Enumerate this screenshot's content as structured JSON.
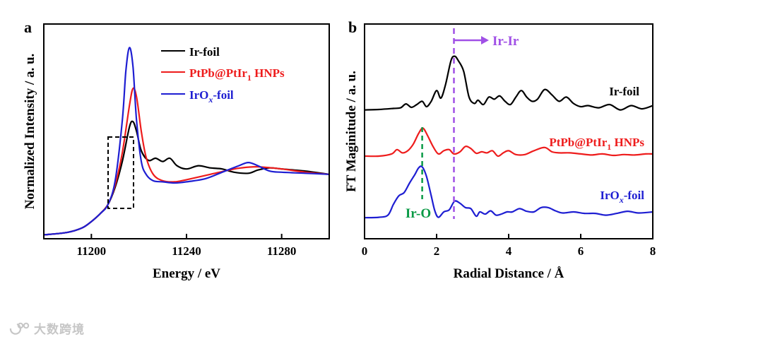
{
  "figure": {
    "watermark": "大数跨境",
    "colors": {
      "black": "#000000",
      "red": "#ee1c1c",
      "blue": "#1e1ed2",
      "green": "#0a9a46",
      "purple": "#a050e6"
    }
  },
  "chart_data": [
    {
      "type": "line",
      "panel_label": "a",
      "xlabel": "Energy / eV",
      "ylabel": "Normalized Intensity / a. u.",
      "xlim": [
        11180,
        11300
      ],
      "ylim": [
        0,
        1.0
      ],
      "xticks": [
        11200,
        11240,
        11280
      ],
      "xtick_labels": [
        "11200",
        "11240",
        "11280"
      ],
      "legend": [
        {
          "label": "Ir-foil",
          "color": "#000000"
        },
        {
          "label": "PtPb@PtIr",
          "subscript": "1",
          "suffix": " HNPs",
          "color": "#ee1c1c"
        },
        {
          "label": "IrO",
          "subscript": "x",
          "suffix": "-foil",
          "color": "#1e1ed2"
        }
      ],
      "legend_position": "top-right",
      "annotation": "dashed box around the absorption edge (11207–11218 eV)",
      "series": [
        {
          "name": "Ir-foil",
          "color": "#000000",
          "x": [
            11180,
            11190,
            11196,
            11200,
            11204,
            11207,
            11210,
            11213,
            11216,
            11217.5,
            11219,
            11221,
            11224,
            11227,
            11230,
            11233,
            11236,
            11240,
            11245,
            11250,
            11255,
            11260,
            11266,
            11270,
            11275,
            11280,
            11290,
            11300
          ],
          "y": [
            0.018,
            0.03,
            0.05,
            0.08,
            0.12,
            0.16,
            0.24,
            0.36,
            0.52,
            0.545,
            0.5,
            0.41,
            0.365,
            0.375,
            0.36,
            0.375,
            0.34,
            0.325,
            0.34,
            0.33,
            0.325,
            0.31,
            0.305,
            0.32,
            0.33,
            0.325,
            0.315,
            0.3
          ]
        },
        {
          "name": "PtPb@PtIr1 HNPs",
          "color": "#ee1c1c",
          "x": [
            11180,
            11190,
            11196,
            11200,
            11204,
            11207,
            11210,
            11213,
            11216,
            11217.5,
            11219,
            11221,
            11223,
            11226,
            11230,
            11235,
            11240,
            11250,
            11258,
            11263,
            11270,
            11280,
            11290,
            11300
          ],
          "y": [
            0.018,
            0.03,
            0.05,
            0.08,
            0.12,
            0.16,
            0.25,
            0.4,
            0.62,
            0.7,
            0.66,
            0.5,
            0.38,
            0.3,
            0.27,
            0.265,
            0.275,
            0.3,
            0.32,
            0.33,
            0.335,
            0.325,
            0.31,
            0.3
          ]
        },
        {
          "name": "IrOx-foil",
          "color": "#1e1ed2",
          "x": [
            11180,
            11190,
            11196,
            11200,
            11204,
            11207,
            11210,
            11213,
            11214.5,
            11216,
            11217.5,
            11219,
            11221,
            11223,
            11226,
            11230,
            11235,
            11240,
            11248,
            11255,
            11262,
            11266,
            11270,
            11275,
            11280,
            11290,
            11300
          ],
          "y": [
            0.018,
            0.03,
            0.05,
            0.08,
            0.12,
            0.16,
            0.27,
            0.55,
            0.78,
            0.89,
            0.8,
            0.55,
            0.36,
            0.3,
            0.27,
            0.265,
            0.26,
            0.265,
            0.28,
            0.31,
            0.34,
            0.355,
            0.34,
            0.315,
            0.31,
            0.305,
            0.3
          ]
        }
      ]
    },
    {
      "type": "line",
      "panel_label": "b",
      "xlabel": "Radial Distance / Å",
      "ylabel": "FT Maginitude / a. u.",
      "xlim": [
        0,
        8
      ],
      "ylim": [
        0,
        1.0
      ],
      "xticks": [
        0,
        2,
        4,
        6,
        8
      ],
      "xtick_labels": [
        "0",
        "2",
        "4",
        "6",
        "8"
      ],
      "reference_lines": [
        {
          "label": "Ir-Ir",
          "x": 2.48,
          "color": "#a050e6",
          "arrow": "right"
        },
        {
          "label": "Ir-O",
          "x": 1.6,
          "color": "#0a9a46"
        }
      ],
      "series_labels": [
        {
          "label": "Ir-foil",
          "color": "#000000"
        },
        {
          "label": "PtPb@PtIr",
          "subscript": "1",
          "suffix": " HNPs",
          "color": "#ee1c1c"
        },
        {
          "label": "IrO",
          "subscript": "x",
          "suffix": "-foil",
          "color": "#1e1ed2"
        }
      ],
      "series": [
        {
          "name": "Ir-foil",
          "color": "#000000",
          "x": [
            0,
            0.4,
            0.8,
            1.0,
            1.15,
            1.3,
            1.45,
            1.6,
            1.72,
            1.85,
            2.0,
            2.12,
            2.25,
            2.4,
            2.5,
            2.6,
            2.75,
            2.9,
            3.05,
            3.15,
            3.3,
            3.45,
            3.6,
            3.75,
            3.9,
            4.05,
            4.2,
            4.35,
            4.5,
            4.65,
            4.8,
            5.0,
            5.2,
            5.4,
            5.6,
            5.8,
            6.0,
            6.2,
            6.5,
            6.8,
            7.1,
            7.4,
            7.7,
            8.0
          ],
          "y": [
            0.6,
            0.602,
            0.607,
            0.61,
            0.628,
            0.612,
            0.625,
            0.64,
            0.615,
            0.64,
            0.69,
            0.655,
            0.72,
            0.83,
            0.85,
            0.83,
            0.78,
            0.66,
            0.63,
            0.645,
            0.625,
            0.66,
            0.65,
            0.665,
            0.64,
            0.625,
            0.66,
            0.69,
            0.66,
            0.64,
            0.65,
            0.695,
            0.67,
            0.64,
            0.66,
            0.63,
            0.615,
            0.62,
            0.61,
            0.625,
            0.6,
            0.62,
            0.605,
            0.62
          ]
        },
        {
          "name": "PtPb@PtIr1 HNPs",
          "color": "#ee1c1c",
          "x": [
            0,
            0.4,
            0.75,
            0.9,
            1.05,
            1.2,
            1.35,
            1.5,
            1.62,
            1.75,
            1.9,
            2.05,
            2.2,
            2.35,
            2.48,
            2.65,
            2.8,
            2.95,
            3.1,
            3.25,
            3.4,
            3.55,
            3.7,
            3.85,
            4.0,
            4.2,
            4.45,
            4.7,
            5.0,
            5.2,
            5.4,
            5.7,
            6.0,
            6.3,
            6.6,
            6.9,
            7.2,
            7.5,
            7.8,
            8.0
          ],
          "y": [
            0.385,
            0.385,
            0.395,
            0.415,
            0.4,
            0.41,
            0.44,
            0.49,
            0.515,
            0.48,
            0.43,
            0.395,
            0.41,
            0.415,
            0.395,
            0.405,
            0.43,
            0.42,
            0.398,
            0.405,
            0.4,
            0.41,
            0.385,
            0.4,
            0.41,
            0.392,
            0.392,
            0.41,
            0.425,
            0.405,
            0.4,
            0.4,
            0.395,
            0.39,
            0.395,
            0.388,
            0.392,
            0.39,
            0.395,
            0.395
          ]
        },
        {
          "name": "IrOx-foil",
          "color": "#1e1ed2",
          "x": [
            0,
            0.4,
            0.65,
            0.8,
            0.95,
            1.1,
            1.25,
            1.4,
            1.5,
            1.6,
            1.72,
            1.85,
            1.95,
            2.05,
            2.2,
            2.35,
            2.5,
            2.65,
            2.8,
            2.95,
            3.1,
            3.2,
            3.35,
            3.5,
            3.65,
            3.8,
            3.95,
            4.1,
            4.3,
            4.5,
            4.7,
            4.9,
            5.1,
            5.3,
            5.5,
            5.8,
            6.1,
            6.4,
            6.7,
            7.0,
            7.3,
            7.6,
            8.0
          ],
          "y": [
            0.098,
            0.1,
            0.11,
            0.16,
            0.2,
            0.215,
            0.26,
            0.3,
            0.33,
            0.335,
            0.29,
            0.2,
            0.13,
            0.1,
            0.125,
            0.135,
            0.175,
            0.165,
            0.145,
            0.14,
            0.105,
            0.125,
            0.115,
            0.13,
            0.11,
            0.115,
            0.125,
            0.125,
            0.14,
            0.128,
            0.125,
            0.145,
            0.145,
            0.13,
            0.12,
            0.125,
            0.118,
            0.118,
            0.11,
            0.118,
            0.128,
            0.12,
            0.125
          ]
        }
      ]
    }
  ]
}
